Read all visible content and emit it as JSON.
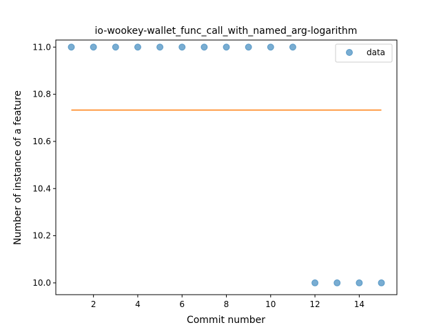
{
  "chart_data": {
    "type": "scatter",
    "title": "io-wookey-wallet_func_call_with_named_arg-logarithm",
    "xlabel": "Commit number",
    "ylabel": "Number of instance of a feature",
    "xlim": [
      0.3,
      15.7
    ],
    "ylim": [
      9.95,
      11.03
    ],
    "xticks": [
      2,
      4,
      6,
      8,
      10,
      12,
      14
    ],
    "xtick_labels": [
      "2",
      "4",
      "6",
      "8",
      "10",
      "12",
      "14"
    ],
    "yticks": [
      10.0,
      10.2,
      10.4,
      10.6,
      10.8,
      11.0
    ],
    "ytick_labels": [
      "10.0",
      "10.2",
      "10.4",
      "10.6",
      "10.8",
      "11.0"
    ],
    "grid": false,
    "legend_position": "top-right",
    "series": [
      {
        "name": "data",
        "kind": "scatter",
        "color": "#1f77b4",
        "alpha": 0.6,
        "x": [
          1,
          2,
          3,
          4,
          5,
          6,
          7,
          8,
          9,
          10,
          11,
          12,
          13,
          14,
          15
        ],
        "y": [
          11.0,
          11.0,
          11.0,
          11.0,
          11.0,
          11.0,
          11.0,
          11.0,
          11.0,
          11.0,
          11.0,
          10.0,
          10.0,
          10.0,
          10.0
        ]
      },
      {
        "kind": "line",
        "color": "#ff7f0e",
        "x": [
          1,
          15
        ],
        "y": [
          10.733,
          10.733
        ]
      }
    ]
  }
}
